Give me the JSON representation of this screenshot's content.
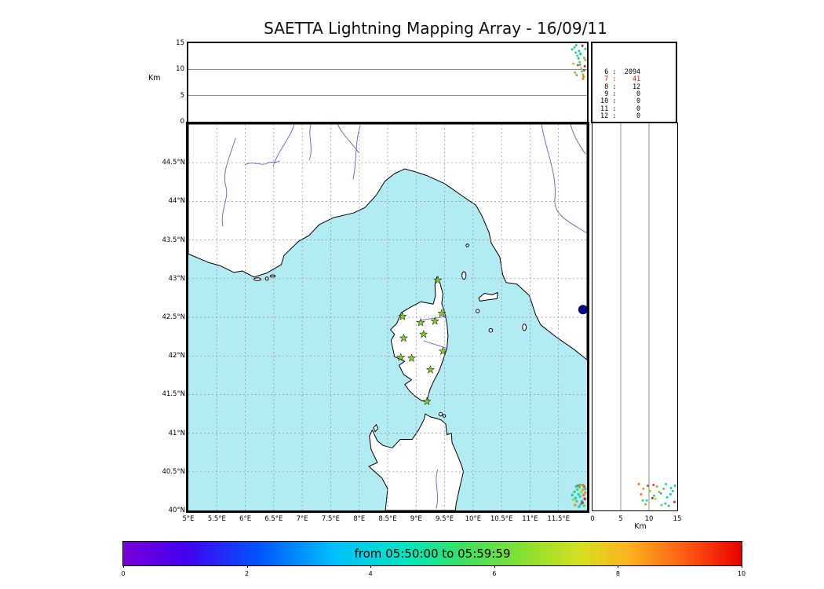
{
  "chart_data": {
    "type": "scatter",
    "title": "SAETTA Lightning Mapping Array - 16/09/11",
    "date": "16/09/11",
    "network": "SAETTA Lightning Mapping Array",
    "alt_lon_panel": {
      "ylabel": "Km",
      "ylim": [
        0,
        15
      ],
      "yticks": [
        0,
        5,
        10,
        15
      ],
      "gridlines": [
        5,
        10
      ],
      "x_range_lon": [
        5,
        12
      ]
    },
    "alt_lat_panel": {
      "xlabel": "Km",
      "xlim": [
        0,
        15
      ],
      "xticks": [
        0,
        5,
        10,
        15
      ],
      "gridlines": [
        5,
        10
      ],
      "y_range_lat": [
        40,
        45
      ]
    },
    "map_panel": {
      "lon_lim": [
        5,
        12
      ],
      "lat_lim": [
        40,
        45
      ],
      "lon_ticks": [
        {
          "v": 5,
          "label": "5°E"
        },
        {
          "v": 5.5,
          "label": "5.5°E"
        },
        {
          "v": 6,
          "label": "6°E"
        },
        {
          "v": 6.5,
          "label": "6.5°E"
        },
        {
          "v": 7,
          "label": "7°E"
        },
        {
          "v": 7.5,
          "label": "7.5°E"
        },
        {
          "v": 8,
          "label": "8°E"
        },
        {
          "v": 8.5,
          "label": "8.5°E"
        },
        {
          "v": 9,
          "label": "9°E"
        },
        {
          "v": 9.5,
          "label": "9.5°E"
        },
        {
          "v": 10,
          "label": "10°E"
        },
        {
          "v": 10.5,
          "label": "10.5°E"
        },
        {
          "v": 11,
          "label": "11°E"
        },
        {
          "v": 11.5,
          "label": "11.5°E"
        }
      ],
      "lat_ticks": [
        {
          "v": 44.5,
          "label": "44.5°N"
        },
        {
          "v": 44,
          "label": "44°N"
        },
        {
          "v": 43.5,
          "label": "43.5°N"
        },
        {
          "v": 43,
          "label": "43°N"
        },
        {
          "v": 42.5,
          "label": "42.5°N"
        },
        {
          "v": 42,
          "label": "42°N"
        },
        {
          "v": 41.5,
          "label": "41.5°N"
        },
        {
          "v": 41,
          "label": "41°N"
        },
        {
          "v": 40.5,
          "label": "40.5°N"
        },
        {
          "v": 40,
          "label": "40°N"
        }
      ],
      "stations_lonlat": [
        [
          9.38,
          42.98
        ],
        [
          8.76,
          42.51
        ],
        [
          9.08,
          42.43
        ],
        [
          9.33,
          42.45
        ],
        [
          9.45,
          42.55
        ],
        [
          8.78,
          42.23
        ],
        [
          9.13,
          42.28
        ],
        [
          9.47,
          42.06
        ],
        [
          8.73,
          41.98
        ],
        [
          8.92,
          41.97
        ],
        [
          9.25,
          41.82
        ],
        [
          9.19,
          41.41
        ]
      ]
    },
    "station_count_table": [
      {
        "label": "6",
        "value": "2094",
        "highlight": false
      },
      {
        "label": "7",
        "value": "41",
        "highlight": true
      },
      {
        "label": "8",
        "value": "12",
        "highlight": false
      },
      {
        "label": "9",
        "value": "0",
        "highlight": false
      },
      {
        "label": "10",
        "value": "0",
        "highlight": false
      },
      {
        "label": "11",
        "value": "0",
        "highlight": false
      },
      {
        "label": "12",
        "value": "0",
        "highlight": false
      }
    ],
    "colorbar": {
      "label": "from 05:50:00 to 05:59:59",
      "lim": [
        0,
        10
      ],
      "ticks": [
        0,
        2,
        4,
        6,
        8,
        10
      ],
      "gradient": [
        {
          "pos": 0,
          "color": "#7a00d8"
        },
        {
          "pos": 0.1,
          "color": "#4400f0"
        },
        {
          "pos": 0.22,
          "color": "#0055ff"
        },
        {
          "pos": 0.34,
          "color": "#00bfff"
        },
        {
          "pos": 0.46,
          "color": "#00e6c0"
        },
        {
          "pos": 0.55,
          "color": "#3ce060"
        },
        {
          "pos": 0.65,
          "color": "#8ae030"
        },
        {
          "pos": 0.74,
          "color": "#d6e020"
        },
        {
          "pos": 0.82,
          "color": "#ffb020"
        },
        {
          "pos": 0.91,
          "color": "#ff5a10"
        },
        {
          "pos": 1,
          "color": "#e80000"
        }
      ]
    },
    "sources": [
      {
        "lon": 11.74,
        "lat": 40.2,
        "alt": 13.8,
        "color": "#1fc8b4"
      },
      {
        "lon": 11.78,
        "lat": 40.24,
        "alt": 14.2,
        "color": "#2ed08e"
      },
      {
        "lon": 11.8,
        "lat": 40.16,
        "alt": 13.2,
        "color": "#24c8cc"
      },
      {
        "lon": 11.83,
        "lat": 40.27,
        "alt": 12.6,
        "color": "#46d05e"
      },
      {
        "lon": 11.85,
        "lat": 40.21,
        "alt": 12.1,
        "color": "#1fc8b4"
      },
      {
        "lon": 11.87,
        "lat": 40.3,
        "alt": 11.4,
        "color": "#66d83e"
      },
      {
        "lon": 11.88,
        "lat": 40.18,
        "alt": 10.9,
        "color": "#2ed08e"
      },
      {
        "lon": 11.9,
        "lat": 40.24,
        "alt": 10.2,
        "color": "#96dc2e"
      },
      {
        "lon": 11.91,
        "lat": 40.12,
        "alt": 9.6,
        "color": "#24c8cc"
      },
      {
        "lon": 11.93,
        "lat": 40.27,
        "alt": 9.0,
        "color": "#e8a01e"
      },
      {
        "lon": 11.94,
        "lat": 40.2,
        "alt": 8.6,
        "color": "#f07828"
      },
      {
        "lon": 11.95,
        "lat": 40.31,
        "alt": 9.8,
        "color": "#e84838"
      },
      {
        "lon": 11.96,
        "lat": 40.15,
        "alt": 10.6,
        "color": "#d82020"
      },
      {
        "lon": 11.97,
        "lat": 40.23,
        "alt": 11.8,
        "color": "#f09030"
      },
      {
        "lon": 11.89,
        "lat": 40.08,
        "alt": 12.9,
        "color": "#24c8cc"
      },
      {
        "lon": 11.86,
        "lat": 40.05,
        "alt": 13.5,
        "color": "#1fc8b4"
      },
      {
        "lon": 11.92,
        "lat": 40.1,
        "alt": 14.5,
        "color": "#d82020"
      },
      {
        "lon": 11.82,
        "lat": 40.12,
        "alt": 8.9,
        "color": "#46d05e"
      },
      {
        "lon": 11.79,
        "lat": 40.07,
        "alt": 9.4,
        "color": "#f09030"
      },
      {
        "lon": 11.84,
        "lat": 40.32,
        "alt": 10.8,
        "color": "#e84838"
      },
      {
        "lon": 11.88,
        "lat": 40.33,
        "alt": 13.0,
        "color": "#2ed08e"
      },
      {
        "lon": 11.95,
        "lat": 40.06,
        "alt": 12.2,
        "color": "#66d83e"
      },
      {
        "lon": 11.97,
        "lat": 40.28,
        "alt": 13.9,
        "color": "#24c8cc"
      },
      {
        "lon": 11.76,
        "lat": 40.14,
        "alt": 11.1,
        "color": "#96dc2e"
      },
      {
        "lon": 11.81,
        "lat": 40.31,
        "alt": 14.6,
        "color": "#1fc8b4"
      },
      {
        "lon": 11.93,
        "lat": 40.33,
        "alt": 8.2,
        "color": "#f07828"
      }
    ],
    "colors": {
      "sea": "#b3ebf2",
      "land": "#ffffff",
      "coastline": "#000000",
      "river": "#6a5acd",
      "grid": "#909090",
      "station_fill": "#7fd41e",
      "lake": "#000080",
      "count_highlight": "#dd1111"
    }
  }
}
